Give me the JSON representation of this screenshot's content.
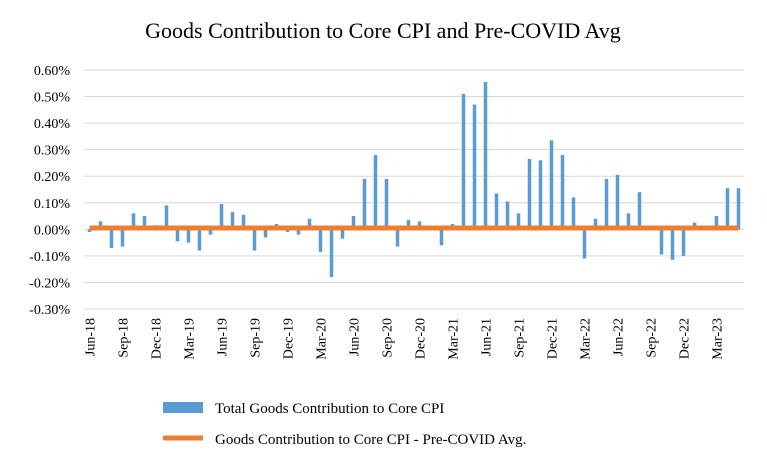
{
  "chart_data": {
    "type": "bar",
    "title": "Goods Contribution to Core CPI and Pre-COVID Avg",
    "xlabel": "",
    "ylabel": "",
    "ylim": [
      -0.3,
      0.6
    ],
    "yticks": [
      "-0.30%",
      "-0.20%",
      "-0.10%",
      "0.00%",
      "0.10%",
      "0.20%",
      "0.30%",
      "0.40%",
      "0.50%",
      "0.60%"
    ],
    "ytick_values": [
      -0.3,
      -0.2,
      -0.1,
      0.0,
      0.1,
      0.2,
      0.3,
      0.4,
      0.5,
      0.6
    ],
    "grid": true,
    "categories": [
      "Jun-18",
      "Jul-18",
      "Aug-18",
      "Sep-18",
      "Oct-18",
      "Nov-18",
      "Dec-18",
      "Jan-19",
      "Feb-19",
      "Mar-19",
      "Apr-19",
      "May-19",
      "Jun-19",
      "Jul-19",
      "Aug-19",
      "Sep-19",
      "Oct-19",
      "Nov-19",
      "Dec-19",
      "Jan-20",
      "Feb-20",
      "Mar-20",
      "Apr-20",
      "May-20",
      "Jun-20",
      "Jul-20",
      "Aug-20",
      "Sep-20",
      "Oct-20",
      "Nov-20",
      "Dec-20",
      "Jan-21",
      "Feb-21",
      "Mar-21",
      "Apr-21",
      "May-21",
      "Jun-21",
      "Jul-21",
      "Aug-21",
      "Sep-21",
      "Oct-21",
      "Nov-21",
      "Dec-21",
      "Jan-22",
      "Feb-22",
      "Mar-22",
      "Apr-22",
      "May-22",
      "Jun-22",
      "Jul-22",
      "Aug-22",
      "Sep-22",
      "Oct-22",
      "Nov-22",
      "Dec-22",
      "Jan-23",
      "Feb-23",
      "Mar-23",
      "Apr-23",
      "May-23"
    ],
    "x_tick_labels": [
      "Jun-18",
      "Sep-18",
      "Dec-18",
      "Mar-19",
      "Jun-19",
      "Sep-19",
      "Dec-19",
      "Mar-20",
      "Jun-20",
      "Sep-20",
      "Dec-20",
      "Mar-21",
      "Jun-21",
      "Sep-21",
      "Dec-21",
      "Mar-22",
      "Jun-22",
      "Sep-22",
      "Dec-22",
      "Mar-23"
    ],
    "series": [
      {
        "name": "Total Goods Contribution to Core CPI",
        "kind": "bar",
        "color": "#5b9bd5",
        "values": [
          -0.01,
          0.03,
          -0.07,
          -0.065,
          0.06,
          0.05,
          0.015,
          0.09,
          -0.045,
          -0.05,
          -0.08,
          -0.02,
          0.095,
          0.065,
          0.055,
          -0.08,
          -0.03,
          0.02,
          -0.01,
          -0.02,
          0.04,
          -0.085,
          -0.18,
          -0.035,
          0.05,
          0.19,
          0.28,
          0.19,
          -0.065,
          0.035,
          0.03,
          0.0,
          -0.06,
          0.02,
          0.51,
          0.47,
          0.555,
          0.135,
          0.105,
          0.06,
          0.265,
          0.26,
          0.335,
          0.28,
          0.12,
          -0.11,
          0.04,
          0.19,
          0.205,
          0.06,
          0.14,
          0.0,
          -0.095,
          -0.115,
          -0.1,
          0.025,
          0.0,
          0.05,
          0.155,
          0.155
        ]
      },
      {
        "name": "Goods Contribution to Core CPI - Pre-COVID Avg.",
        "kind": "line",
        "color": "#ed7d31",
        "value": 0.005
      }
    ],
    "legend_position": "bottom"
  }
}
